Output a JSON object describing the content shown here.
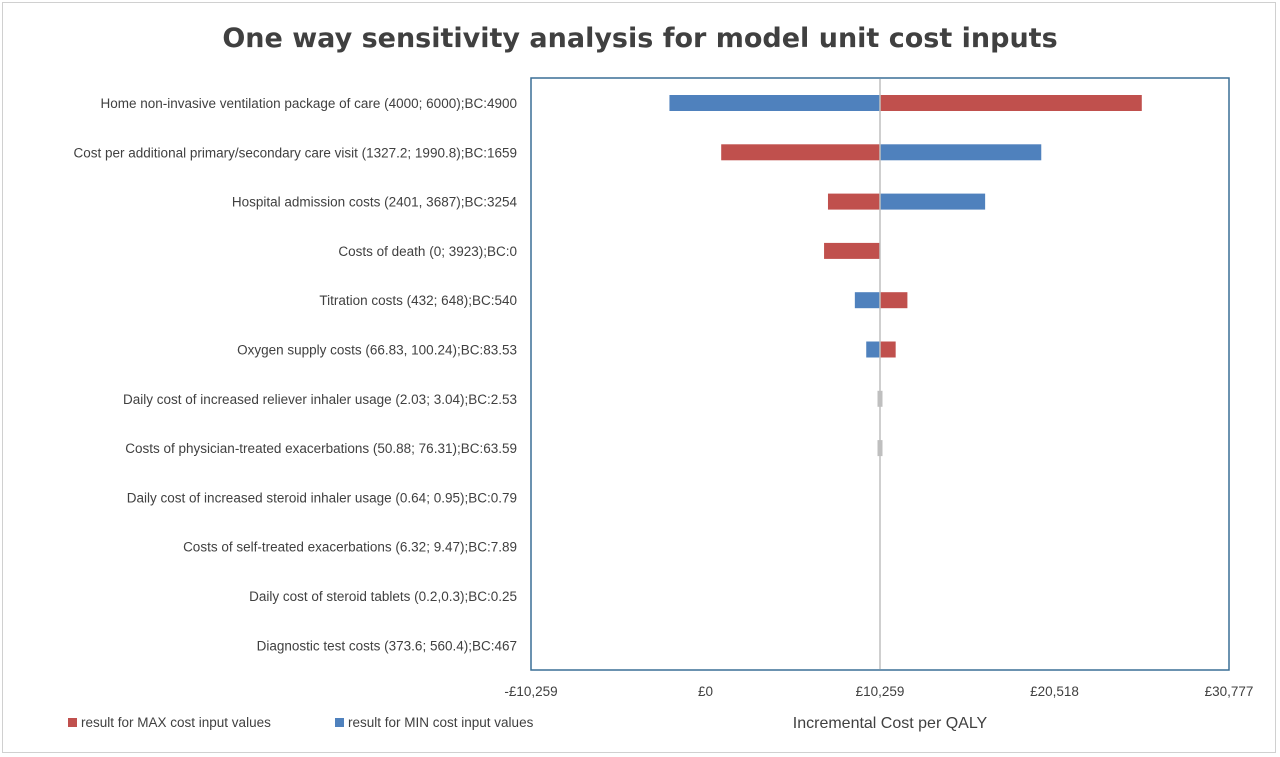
{
  "chart_data": {
    "type": "bar",
    "orientation": "horizontal",
    "title": "One way sensitivity analysis for model unit cost inputs",
    "xlabel": "Incremental Cost per QALY",
    "base_case": 10259,
    "xlim": [
      -10259,
      30777
    ],
    "x_ticks": [
      -10259,
      0,
      10259,
      20518,
      30777
    ],
    "x_tick_labels": [
      "-£10,259",
      "£0",
      "£10,259",
      "£20,518",
      "£30,777"
    ],
    "grid": false,
    "legend_position": "bottom-left",
    "categories": [
      "Home non-invasive ventilation package of care (4000; 6000);BC:4900",
      "Cost per additional primary/secondary care visit (1327.2; 1990.8);BC:1659",
      "Hospital admission costs (2401, 3687);BC:3254",
      "Costs of death (0; 3923);BC:0",
      "Titration costs  (432; 648);BC:540",
      "Oxygen supply costs (66.83, 100.24);BC:83.53",
      "Daily cost of increased reliever inhaler usage (2.03; 3.04);BC:2.53",
      "Costs of physician-treated exacerbations (50.88; 76.31);BC:63.59",
      "Daily cost of increased steroid inhaler usage (0.64; 0.95);BC:0.79",
      "Costs of self-treated exacerbations (6.32; 9.47);BC:7.89",
      "Daily cost of steroid tablets (0.2,0.3);BC:0.25",
      "Diagnostic test costs (373.6; 560.4);BC:467"
    ],
    "series": [
      {
        "name": "result for MAX cost input values",
        "color": "#c0504d",
        "values": [
          25650,
          923,
          7200,
          6970,
          11870,
          11180,
          10259,
          10259,
          10259,
          10259,
          10259,
          10259
        ]
      },
      {
        "name": "result for MIN cost input values",
        "color": "#4f81bd",
        "values": [
          -2120,
          19740,
          16440,
          10259,
          8780,
          9450,
          10259,
          10259,
          10259,
          10259,
          10259,
          10259
        ]
      }
    ],
    "marker_color": "#bfbfbf",
    "marker_rows": [
      6,
      7
    ]
  }
}
